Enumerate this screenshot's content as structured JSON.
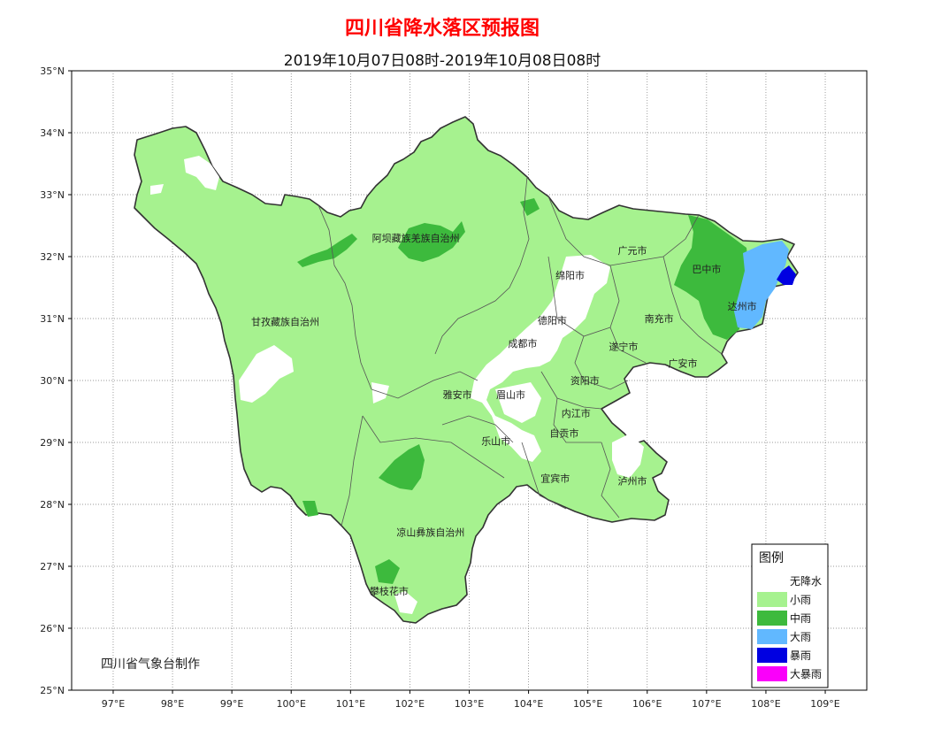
{
  "header": {
    "title": "四川省降水落区预报图",
    "subtitle": "2019年10月07日08时-2019年10月08日08时"
  },
  "axes": {
    "lon_ticks": [
      "97°E",
      "98°E",
      "99°E",
      "100°E",
      "101°E",
      "102°E",
      "103°E",
      "104°E",
      "105°E",
      "106°E",
      "107°E",
      "108°E",
      "109°E"
    ],
    "lat_ticks": [
      "35°N",
      "34°N",
      "33°N",
      "32°N",
      "31°N",
      "30°N",
      "29°N",
      "28°N",
      "27°N",
      "26°N",
      "25°N"
    ],
    "lon_range": [
      96.3,
      109.7
    ],
    "lat_range": [
      25,
      35
    ],
    "grid": "dotted"
  },
  "cities": [
    {
      "name": "阿坝藏族羌族自治州",
      "lon": 102.1,
      "lat": 32.3
    },
    {
      "name": "甘孜藏族自治州",
      "lon": 99.9,
      "lat": 30.95
    },
    {
      "name": "广元市",
      "lon": 105.75,
      "lat": 32.1
    },
    {
      "name": "绵阳市",
      "lon": 104.7,
      "lat": 31.7
    },
    {
      "name": "巴中市",
      "lon": 107.0,
      "lat": 31.8
    },
    {
      "name": "达州市",
      "lon": 107.6,
      "lat": 31.2
    },
    {
      "name": "南充市",
      "lon": 106.2,
      "lat": 31.0
    },
    {
      "name": "德阳市",
      "lon": 104.4,
      "lat": 30.97
    },
    {
      "name": "成都市",
      "lon": 103.9,
      "lat": 30.6
    },
    {
      "name": "遂宁市",
      "lon": 105.6,
      "lat": 30.55
    },
    {
      "name": "广安市",
      "lon": 106.6,
      "lat": 30.28
    },
    {
      "name": "资阳市",
      "lon": 104.95,
      "lat": 30.0
    },
    {
      "name": "雅安市",
      "lon": 102.8,
      "lat": 29.77
    },
    {
      "name": "眉山市",
      "lon": 103.7,
      "lat": 29.77
    },
    {
      "name": "内江市",
      "lon": 104.8,
      "lat": 29.47
    },
    {
      "name": "自贡市",
      "lon": 104.6,
      "lat": 29.15
    },
    {
      "name": "乐山市",
      "lon": 103.45,
      "lat": 29.02
    },
    {
      "name": "宜宾市",
      "lon": 104.45,
      "lat": 28.42
    },
    {
      "name": "泸州市",
      "lon": 105.75,
      "lat": 28.38
    },
    {
      "name": "凉山彝族自治州",
      "lon": 102.35,
      "lat": 27.55
    },
    {
      "name": "攀枝花市",
      "lon": 101.65,
      "lat": 26.6
    }
  ],
  "credit": "四川省气象台制作",
  "legend": {
    "title": "图例",
    "items": [
      {
        "label": "无降水",
        "color": "#ffffff"
      },
      {
        "label": "小雨",
        "color": "#a6f28f"
      },
      {
        "label": "中雨",
        "color": "#3dba3d"
      },
      {
        "label": "大雨",
        "color": "#61b8ff"
      },
      {
        "label": "暴雨",
        "color": "#0000e1"
      },
      {
        "label": "大暴雨",
        "color": "#fa00fa"
      }
    ]
  }
}
